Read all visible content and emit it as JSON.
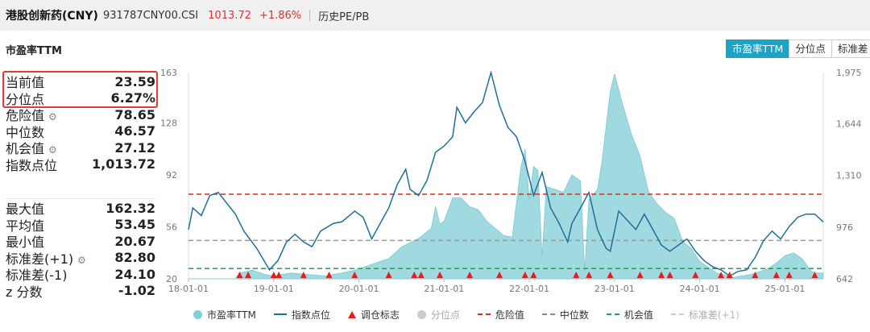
{
  "header": {
    "name": "港股创新药(CNY)",
    "code": "931787CNY00.CSI",
    "price": "1013.72",
    "change": "+1.86%",
    "history_link": "历史PE/PB"
  },
  "section_title": "市盈率TTM",
  "tabs": [
    "市盈率TTM",
    "分位点",
    "标准差"
  ],
  "stats_top": [
    {
      "label": "当前值",
      "value": "23.59",
      "gear": false
    },
    {
      "label": "分位点",
      "value": "6.27%",
      "gear": false
    },
    {
      "label": "危险值",
      "value": "78.65",
      "gear": true
    },
    {
      "label": "中位数",
      "value": "46.57",
      "gear": false
    },
    {
      "label": "机会值",
      "value": "27.12",
      "gear": true
    },
    {
      "label": "指数点位",
      "value": "1,013.72",
      "gear": false
    }
  ],
  "stats_bottom": [
    {
      "label": "最大值",
      "value": "162.32",
      "gear": false
    },
    {
      "label": "平均值",
      "value": "53.45",
      "gear": false
    },
    {
      "label": "最小值",
      "value": "20.67",
      "gear": false
    },
    {
      "label": "标准差(+1)",
      "value": "82.80",
      "gear": true
    },
    {
      "label": "标准差(-1)",
      "value": "24.10",
      "gear": false
    },
    {
      "label": "z 分数",
      "value": "-1.02",
      "gear": false
    }
  ],
  "legend": [
    {
      "label": "市盈率TTM",
      "kind": "circle",
      "color": "#7fd0d8",
      "dim": false
    },
    {
      "label": "指数点位",
      "kind": "line",
      "color": "#1f6f96",
      "dim": false
    },
    {
      "label": "调仓标志",
      "kind": "triangle",
      "color": "#e02020",
      "dim": false
    },
    {
      "label": "分位点",
      "kind": "circle",
      "color": "#cccccc",
      "dim": true
    },
    {
      "label": "危险值",
      "kind": "dash",
      "color": "#d62c2c",
      "dim": false
    },
    {
      "label": "中位数",
      "kind": "dash",
      "color": "#888888",
      "dim": false
    },
    {
      "label": "机会值",
      "kind": "dash",
      "color": "#1aa35a",
      "dim": false
    },
    {
      "label": "标准差(+1)",
      "kind": "dash",
      "color": "#cccccc",
      "dim": true
    }
  ],
  "chart_data": {
    "type": "area",
    "x_ticks": [
      "18-01-01",
      "19-01-01",
      "20-01-01",
      "21-01-01",
      "22-01-01",
      "23-01-01",
      "24-01-01",
      "25-01-01"
    ],
    "y_left_ticks": [
      "163",
      "128",
      "92",
      "56",
      "20"
    ],
    "y_right_ticks": [
      "1,975",
      "1,644",
      "1,310",
      "976",
      "642"
    ],
    "ylim_left": [
      20,
      163
    ],
    "ylim_right": [
      642,
      1975
    ],
    "x_range": [
      2018.0,
      2025.45
    ],
    "reference_lines": {
      "danger": 78.65,
      "median": 46.57,
      "opportunity": 27.12
    },
    "colors": {
      "pe_fill": "#8fd3db",
      "index_line": "#1f6f96",
      "danger": "#d62c2c",
      "median": "#999999",
      "opportunity": "#1aa35a",
      "marker": "#e02020"
    },
    "pe_series": [
      [
        2018.0,
        20
      ],
      [
        2018.55,
        20
      ],
      [
        2018.6,
        24
      ],
      [
        2018.75,
        26
      ],
      [
        2018.9,
        23
      ],
      [
        2019.0,
        22
      ],
      [
        2019.2,
        24
      ],
      [
        2019.4,
        23
      ],
      [
        2019.6,
        22
      ],
      [
        2019.8,
        24
      ],
      [
        2019.95,
        26
      ],
      [
        2020.1,
        29
      ],
      [
        2020.2,
        31
      ],
      [
        2020.35,
        34
      ],
      [
        2020.5,
        42
      ],
      [
        2020.7,
        48
      ],
      [
        2020.85,
        55
      ],
      [
        2020.9,
        70
      ],
      [
        2020.95,
        58
      ],
      [
        2021.0,
        60
      ],
      [
        2021.1,
        76
      ],
      [
        2021.2,
        76
      ],
      [
        2021.3,
        70
      ],
      [
        2021.4,
        68
      ],
      [
        2021.5,
        60
      ],
      [
        2021.6,
        55
      ],
      [
        2021.7,
        50
      ],
      [
        2021.8,
        49
      ],
      [
        2021.9,
        97
      ],
      [
        2021.95,
        110
      ],
      [
        2022.0,
        75
      ],
      [
        2022.05,
        98
      ],
      [
        2022.1,
        95
      ],
      [
        2022.15,
        35
      ],
      [
        2022.2,
        84
      ],
      [
        2022.3,
        82
      ],
      [
        2022.4,
        80
      ],
      [
        2022.5,
        92
      ],
      [
        2022.6,
        88
      ],
      [
        2022.65,
        25
      ],
      [
        2022.7,
        75
      ],
      [
        2022.8,
        82
      ],
      [
        2022.85,
        100
      ],
      [
        2022.95,
        150
      ],
      [
        2023.0,
        162
      ],
      [
        2023.1,
        140
      ],
      [
        2023.2,
        120
      ],
      [
        2023.3,
        105
      ],
      [
        2023.4,
        80
      ],
      [
        2023.5,
        72
      ],
      [
        2023.6,
        66
      ],
      [
        2023.7,
        62
      ],
      [
        2023.8,
        46
      ],
      [
        2023.9,
        41
      ],
      [
        2024.0,
        32
      ],
      [
        2024.2,
        24
      ],
      [
        2024.4,
        21
      ],
      [
        2024.6,
        23
      ],
      [
        2024.8,
        27
      ],
      [
        2024.9,
        31
      ],
      [
        2025.0,
        36
      ],
      [
        2025.1,
        38
      ],
      [
        2025.2,
        34
      ],
      [
        2025.3,
        26
      ],
      [
        2025.35,
        24
      ],
      [
        2025.45,
        24
      ]
    ],
    "index_series": [
      [
        2018.0,
        960
      ],
      [
        2018.05,
        1100
      ],
      [
        2018.15,
        1050
      ],
      [
        2018.25,
        1180
      ],
      [
        2018.35,
        1200
      ],
      [
        2018.45,
        1130
      ],
      [
        2018.55,
        1060
      ],
      [
        2018.65,
        950
      ],
      [
        2018.8,
        840
      ],
      [
        2018.95,
        700
      ],
      [
        2019.05,
        760
      ],
      [
        2019.15,
        880
      ],
      [
        2019.25,
        930
      ],
      [
        2019.35,
        880
      ],
      [
        2019.45,
        850
      ],
      [
        2019.55,
        950
      ],
      [
        2019.7,
        1000
      ],
      [
        2019.8,
        1010
      ],
      [
        2019.95,
        1080
      ],
      [
        2020.05,
        1040
      ],
      [
        2020.15,
        900
      ],
      [
        2020.25,
        1000
      ],
      [
        2020.35,
        1100
      ],
      [
        2020.45,
        1250
      ],
      [
        2020.55,
        1350
      ],
      [
        2020.6,
        1220
      ],
      [
        2020.7,
        1180
      ],
      [
        2020.8,
        1280
      ],
      [
        2020.9,
        1460
      ],
      [
        2021.0,
        1500
      ],
      [
        2021.1,
        1560
      ],
      [
        2021.15,
        1750
      ],
      [
        2021.25,
        1650
      ],
      [
        2021.35,
        1720
      ],
      [
        2021.45,
        1780
      ],
      [
        2021.55,
        1975
      ],
      [
        2021.65,
        1760
      ],
      [
        2021.75,
        1620
      ],
      [
        2021.85,
        1560
      ],
      [
        2021.95,
        1400
      ],
      [
        2022.05,
        1180
      ],
      [
        2022.15,
        1330
      ],
      [
        2022.25,
        1100
      ],
      [
        2022.35,
        1000
      ],
      [
        2022.45,
        880
      ],
      [
        2022.5,
        1000
      ],
      [
        2022.6,
        1100
      ],
      [
        2022.7,
        1200
      ],
      [
        2022.8,
        960
      ],
      [
        2022.9,
        840
      ],
      [
        2022.95,
        820
      ],
      [
        2023.05,
        1080
      ],
      [
        2023.15,
        1020
      ],
      [
        2023.25,
        960
      ],
      [
        2023.35,
        1060
      ],
      [
        2023.45,
        960
      ],
      [
        2023.55,
        860
      ],
      [
        2023.65,
        820
      ],
      [
        2023.75,
        860
      ],
      [
        2023.85,
        900
      ],
      [
        2023.95,
        820
      ],
      [
        2024.05,
        760
      ],
      [
        2024.15,
        720
      ],
      [
        2024.25,
        700
      ],
      [
        2024.35,
        660
      ],
      [
        2024.45,
        690
      ],
      [
        2024.55,
        700
      ],
      [
        2024.65,
        780
      ],
      [
        2024.75,
        890
      ],
      [
        2024.85,
        950
      ],
      [
        2024.95,
        900
      ],
      [
        2025.05,
        980
      ],
      [
        2025.15,
        1040
      ],
      [
        2025.25,
        1060
      ],
      [
        2025.35,
        1060
      ],
      [
        2025.45,
        1010
      ]
    ],
    "rebalance_markers": [
      2018.6,
      2018.7,
      2019.0,
      2019.06,
      2019.35,
      2019.65,
      2019.95,
      2020.35,
      2020.65,
      2020.73,
      2020.95,
      2021.3,
      2021.65,
      2021.95,
      2022.05,
      2022.55,
      2022.7,
      2022.95,
      2023.3,
      2023.55,
      2023.65,
      2023.95,
      2024.25,
      2024.35,
      2024.65,
      2024.9,
      2025.05,
      2025.35
    ]
  }
}
